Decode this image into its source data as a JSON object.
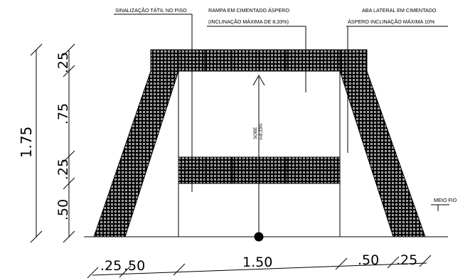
{
  "labels": {
    "tactile": "SINALIZAÇÃO TÁTIL NO PISO",
    "ramp_line1": "RAMPA EM CIMENTADO ÁSPERO",
    "ramp_line2": "(INCLINAÇÃO MÁXIMA DE 8,33%)",
    "flap_line1": "ABA LATERAL EM CIMENTADO",
    "flap_line2": "ÁSPERO INCLINAÇÃO MÁXIMA 10%",
    "curb": "MEIO FIO",
    "arrow_text": "SOBE",
    "arrow_slope": "i=8,33%"
  },
  "dimensions": {
    "vertical_total": "1.75",
    "vertical_parts": [
      ".25",
      ".75",
      ".25",
      ".50"
    ],
    "horizontal_parts": [
      ".25",
      ".50",
      "1.50",
      ".50",
      ".25"
    ]
  }
}
